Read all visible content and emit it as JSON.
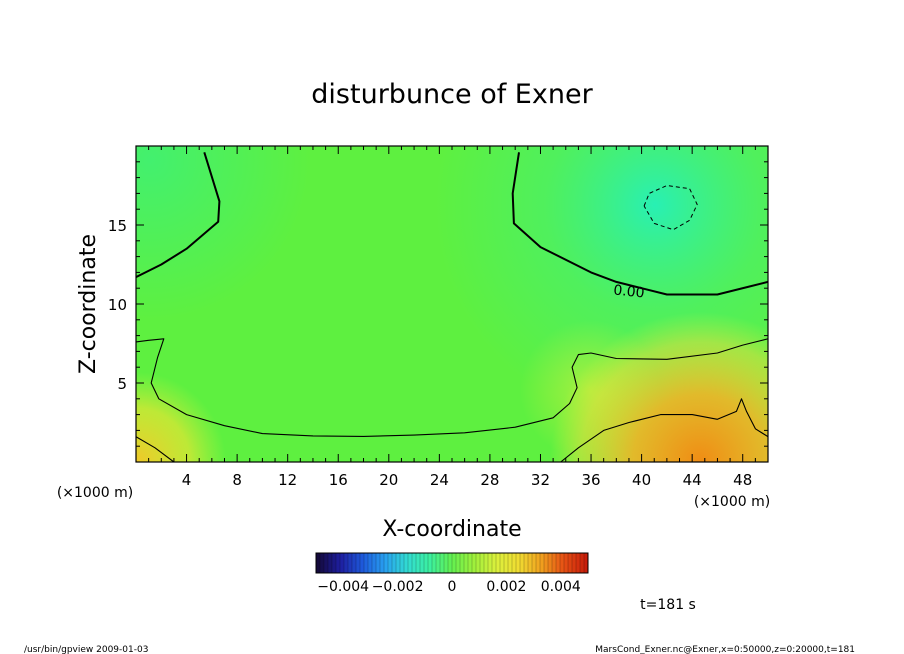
{
  "chart_data": {
    "type": "heatmap",
    "title": "disturbunce of Exner",
    "xlabel": "X-coordinate",
    "ylabel": "Z-coordinate",
    "x_unit": "(×1000 m)",
    "y_unit": "(×1000 m)",
    "xlim": [
      0,
      50
    ],
    "ylim": [
      0,
      20
    ],
    "x_ticks": [
      4,
      8,
      12,
      16,
      20,
      24,
      28,
      32,
      36,
      40,
      44,
      48
    ],
    "y_ticks": [
      5,
      10,
      15
    ],
    "contour_label": "0.00",
    "colorbar": {
      "range": [
        -0.005,
        0.005
      ],
      "tick_values": [
        -0.004,
        -0.002,
        0,
        0.002,
        0.004
      ],
      "tick_labels": [
        "−0.004",
        "−0.002",
        "0",
        "0.002",
        "0.004"
      ],
      "colors": [
        "#140a3c",
        "#1e1ea0",
        "#1e5adc",
        "#28a0f0",
        "#32dcd2",
        "#3cf0a0",
        "#64f050",
        "#a0f03c",
        "#dcf03c",
        "#f0dc32",
        "#f0a01e",
        "#e65014",
        "#c81e0a"
      ]
    },
    "time_label": "t=181 s",
    "contours": [
      {
        "name": "zero-upper",
        "style": "thick",
        "points": [
          [
            0,
            11.7
          ],
          [
            2,
            12.5
          ],
          [
            4,
            13.5
          ],
          [
            6.5,
            15.2
          ],
          [
            6.6,
            16.5
          ],
          [
            5.4,
            19.6
          ]
        ]
      },
      {
        "name": "zero-upper-right",
        "style": "thick",
        "points": [
          [
            30.3,
            19.6
          ],
          [
            29.8,
            17
          ],
          [
            29.9,
            15.1
          ],
          [
            32,
            13.6
          ],
          [
            36,
            12
          ],
          [
            38,
            11.4
          ],
          [
            40,
            11
          ],
          [
            42,
            10.6
          ],
          [
            46,
            10.6
          ],
          [
            48.5,
            11.1
          ],
          [
            50,
            11.4
          ]
        ]
      },
      {
        "name": "negative-bubble",
        "style": "dashed",
        "points": [
          [
            40.2,
            16.2
          ],
          [
            40.6,
            17
          ],
          [
            42,
            17.5
          ],
          [
            43.8,
            17.3
          ],
          [
            44.4,
            16.3
          ],
          [
            43.8,
            15.3
          ],
          [
            42.5,
            14.7
          ],
          [
            41,
            15.1
          ],
          [
            40.2,
            16.2
          ]
        ]
      },
      {
        "name": "positive-inner",
        "style": "thin",
        "points": [
          [
            0,
            7.6
          ],
          [
            1,
            7.7
          ],
          [
            2.2,
            7.8
          ],
          [
            1.7,
            6.6
          ],
          [
            1.2,
            5
          ],
          [
            1.8,
            4
          ],
          [
            4,
            3
          ],
          [
            7,
            2.3
          ],
          [
            10,
            1.8
          ],
          [
            14,
            1.65
          ],
          [
            18,
            1.62
          ],
          [
            22,
            1.7
          ],
          [
            26,
            1.85
          ],
          [
            30,
            2.2
          ],
          [
            33,
            2.8
          ],
          [
            34.3,
            3.7
          ],
          [
            34.9,
            4.7
          ],
          [
            34.5,
            6
          ],
          [
            35,
            6.8
          ],
          [
            36,
            6.9
          ],
          [
            38,
            6.55
          ],
          [
            42,
            6.5
          ],
          [
            46,
            6.9
          ],
          [
            48,
            7.4
          ],
          [
            50,
            7.8
          ]
        ]
      },
      {
        "name": "positive-lower-left",
        "style": "thin",
        "points": [
          [
            0,
            1.6
          ],
          [
            1.5,
            0.9
          ],
          [
            3,
            0
          ]
        ]
      },
      {
        "name": "positive-lower-right",
        "style": "thin",
        "points": [
          [
            33.6,
            0
          ],
          [
            35,
            0.9
          ],
          [
            37,
            2
          ],
          [
            39,
            2.5
          ],
          [
            41.5,
            3
          ],
          [
            44,
            3
          ],
          [
            46,
            2.7
          ],
          [
            47.5,
            3.2
          ],
          [
            47.9,
            4
          ],
          [
            48.3,
            3.2
          ],
          [
            49,
            2.1
          ],
          [
            50,
            1.6
          ]
        ]
      }
    ]
  },
  "footer": {
    "left": "/usr/bin/gpview   2009-01-03",
    "right": "MarsCond_Exner.nc@Exner,x=0:50000,z=0:20000,t=181"
  }
}
